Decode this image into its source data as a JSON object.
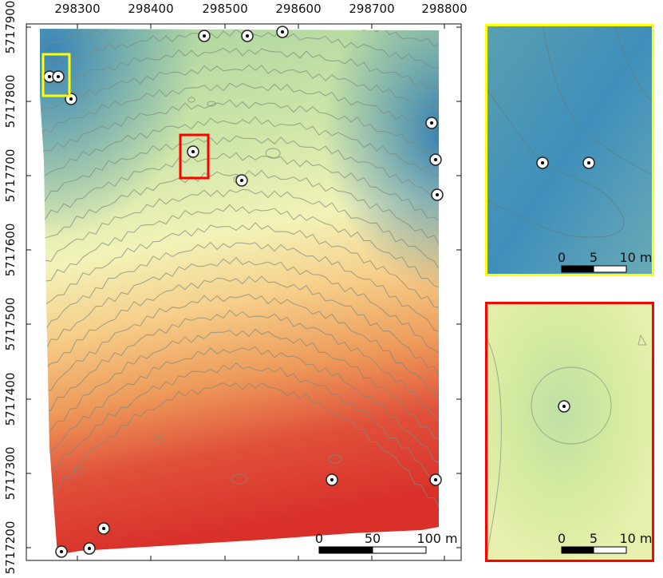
{
  "main_map": {
    "x_ticks": [
      "298300",
      "298400",
      "298500",
      "298600",
      "298700",
      "298800"
    ],
    "y_ticks": [
      "5717900",
      "5717800",
      "5717700",
      "5717600",
      "5717500",
      "5717400",
      "5717300",
      "5717200"
    ],
    "scale_bar": {
      "labels": [
        "0",
        "50",
        "100 m"
      ]
    },
    "color_ramp": [
      "#2e7fb0",
      "#9fcf9c",
      "#eef2b0",
      "#f3c77f",
      "#ec8a4f",
      "#d9302a"
    ]
  },
  "inset_yellow": {
    "frame_color": "#ffff00",
    "scale_bar": {
      "labels": [
        "0",
        "5",
        "10 m"
      ]
    }
  },
  "inset_red": {
    "frame_color": "#ff0000",
    "scale_bar": {
      "labels": [
        "0",
        "5",
        "10 m"
      ]
    }
  }
}
